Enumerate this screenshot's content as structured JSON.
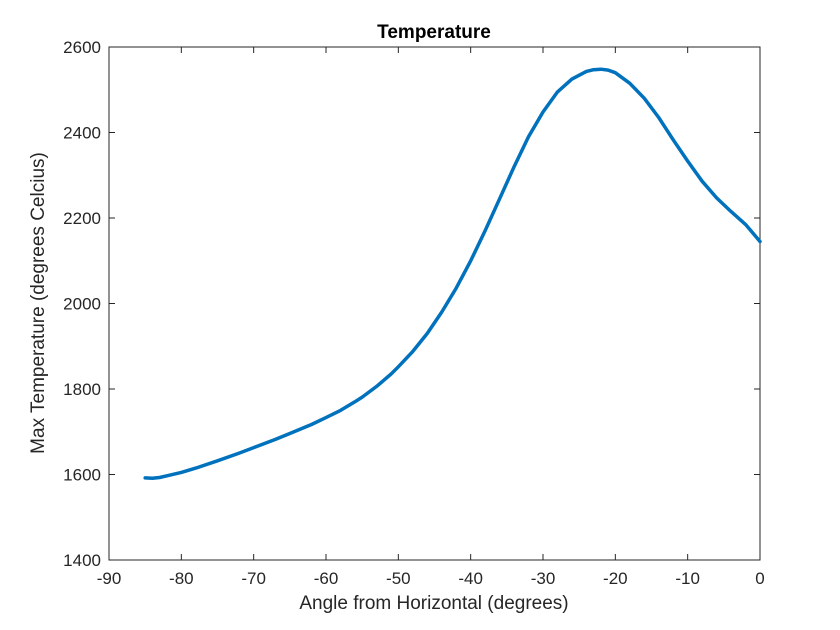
{
  "chart_data": {
    "type": "line",
    "title": "Temperature",
    "xlabel": "Angle from Horizontal (degrees)",
    "ylabel": "Max Temperature (degrees Celcius)",
    "xlim": [
      -90,
      0
    ],
    "ylim": [
      1400,
      2600
    ],
    "xticks": [
      -90,
      -80,
      -70,
      -60,
      -50,
      -40,
      -30,
      -20,
      -10,
      0
    ],
    "yticks": [
      1400,
      1600,
      1800,
      2000,
      2200,
      2400,
      2600
    ],
    "grid": false,
    "line_color": "#0072BD",
    "series": [
      {
        "x": [
          -85,
          -84,
          -83,
          -82,
          -80,
          -78,
          -75,
          -72,
          -70,
          -67,
          -65,
          -62,
          -60,
          -58,
          -56,
          -55,
          -53,
          -51,
          -50,
          -48,
          -46,
          -44,
          -42,
          -40,
          -38,
          -36,
          -34,
          -32,
          -30,
          -28,
          -26,
          -24,
          -23,
          -22,
          -21,
          -20,
          -18,
          -16,
          -14,
          -12,
          -10,
          -8,
          -6,
          -4,
          -2,
          0
        ],
        "y": [
          1592,
          1591,
          1593,
          1597,
          1605,
          1615,
          1632,
          1650,
          1663,
          1682,
          1696,
          1717,
          1733,
          1750,
          1770,
          1781,
          1806,
          1835,
          1852,
          1888,
          1930,
          1980,
          2036,
          2100,
          2170,
          2245,
          2320,
          2390,
          2448,
          2495,
          2525,
          2543,
          2547,
          2548,
          2546,
          2540,
          2515,
          2480,
          2435,
          2383,
          2333,
          2286,
          2247,
          2215,
          2185,
          2145
        ]
      }
    ]
  }
}
